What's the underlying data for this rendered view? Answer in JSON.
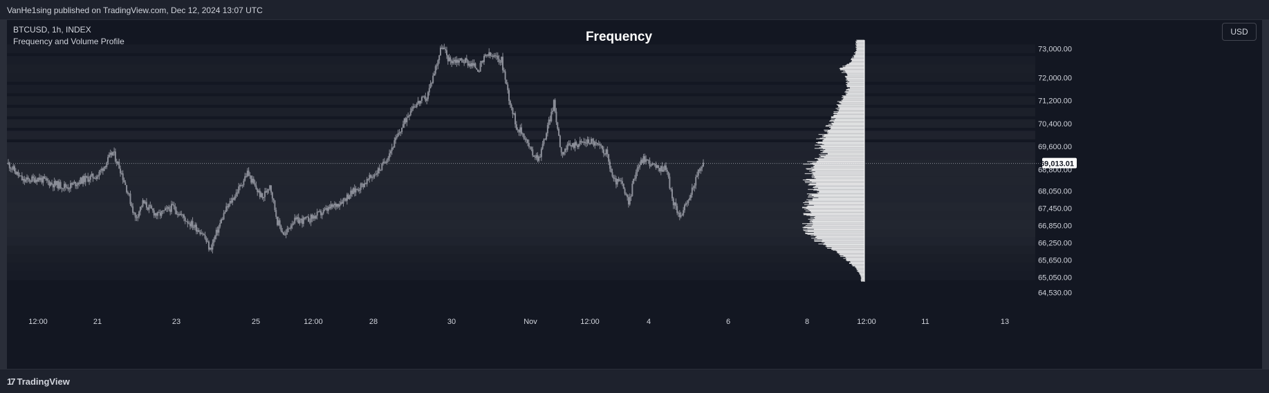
{
  "header": {
    "publisher_text": "VanHe1sing published on TradingView.com, Dec 12, 2024 13:07 UTC"
  },
  "legend": {
    "symbol_line": "BTCUSD, 1h, INDEX",
    "indicator_line": "Frequency and Volume Profile"
  },
  "currency_button": "USD",
  "footer": {
    "brand": "TradingView",
    "logo": "17"
  },
  "colors": {
    "background": "#131722",
    "candle": "#8c8f99",
    "profile": "#ffffff",
    "price_label_bg": "#ffffff",
    "axis_text": "#d1d4dc"
  },
  "chart_data": {
    "type": "candlestick",
    "title": "Frequency",
    "symbol": "BTCUSD",
    "interval": "1h",
    "current_price": "69,013.01",
    "y_range": [
      64200,
      74000
    ],
    "y_ticks": [
      "73,000.00",
      "72,000.00",
      "71,200.00",
      "70,400.00",
      "69,600.00",
      "68,800.00",
      "68,050.00",
      "67,450.00",
      "66,850.00",
      "66,250.00",
      "65,650.00",
      "65,050.00",
      "64,530.00"
    ],
    "x_ticks": [
      "12:00",
      "21",
      "23",
      "25",
      "12:00",
      "28",
      "30",
      "Nov",
      "12:00",
      "4",
      "6",
      "8",
      "12:00",
      "11",
      "13"
    ],
    "price_path": [
      [
        0,
        69000
      ],
      [
        4,
        68400
      ],
      [
        8,
        68500
      ],
      [
        12,
        68300
      ],
      [
        16,
        68200
      ],
      [
        20,
        68450
      ],
      [
        24,
        68600
      ],
      [
        28,
        69400
      ],
      [
        30,
        68800
      ],
      [
        32,
        68000
      ],
      [
        34,
        67100
      ],
      [
        36,
        67650
      ],
      [
        40,
        67200
      ],
      [
        44,
        67500
      ],
      [
        48,
        67000
      ],
      [
        52,
        66600
      ],
      [
        54,
        66000
      ],
      [
        56,
        66700
      ],
      [
        58,
        67350
      ],
      [
        62,
        68200
      ],
      [
        64,
        68700
      ],
      [
        66,
        68200
      ],
      [
        68,
        67800
      ],
      [
        70,
        68300
      ],
      [
        72,
        67000
      ],
      [
        74,
        66500
      ],
      [
        76,
        67000
      ],
      [
        80,
        67050
      ],
      [
        84,
        67300
      ],
      [
        88,
        67600
      ],
      [
        92,
        68000
      ],
      [
        96,
        68400
      ],
      [
        100,
        68900
      ],
      [
        104,
        69900
      ],
      [
        108,
        71000
      ],
      [
        112,
        71300
      ],
      [
        114,
        72200
      ],
      [
        116,
        73100
      ],
      [
        118,
        72600
      ],
      [
        122,
        72600
      ],
      [
        126,
        72300
      ],
      [
        128,
        72800
      ],
      [
        132,
        72600
      ],
      [
        134,
        71300
      ],
      [
        136,
        70300
      ],
      [
        138,
        70000
      ],
      [
        140,
        69400
      ],
      [
        142,
        69200
      ],
      [
        144,
        70100
      ],
      [
        146,
        71100
      ],
      [
        148,
        69400
      ],
      [
        150,
        69600
      ],
      [
        152,
        69700
      ],
      [
        156,
        69800
      ],
      [
        158,
        69600
      ],
      [
        160,
        69400
      ],
      [
        162,
        68400
      ],
      [
        164,
        68350
      ],
      [
        166,
        67600
      ],
      [
        168,
        68800
      ],
      [
        170,
        69200
      ],
      [
        172,
        69000
      ],
      [
        174,
        68800
      ],
      [
        176,
        68900
      ],
      [
        178,
        67600
      ],
      [
        180,
        67200
      ],
      [
        182,
        67700
      ],
      [
        184,
        68500
      ],
      [
        186,
        69013
      ]
    ],
    "profile": [
      [
        73000,
        0.14
      ],
      [
        72600,
        0.22
      ],
      [
        72300,
        0.4
      ],
      [
        72000,
        0.3
      ],
      [
        71600,
        0.28
      ],
      [
        71200,
        0.42
      ],
      [
        70800,
        0.48
      ],
      [
        70400,
        0.58
      ],
      [
        70000,
        0.72
      ],
      [
        69600,
        0.8
      ],
      [
        69300,
        0.7
      ],
      [
        69000,
        0.95
      ],
      [
        68700,
        0.92
      ],
      [
        68400,
        0.96
      ],
      [
        68100,
        0.88
      ],
      [
        67800,
        0.9
      ],
      [
        67500,
        1.0
      ],
      [
        67200,
        0.96
      ],
      [
        66900,
        0.99
      ],
      [
        66600,
        0.94
      ],
      [
        66300,
        0.8
      ],
      [
        66000,
        0.52
      ],
      [
        65700,
        0.34
      ],
      [
        65400,
        0.16
      ],
      [
        65100,
        0.06
      ]
    ]
  }
}
